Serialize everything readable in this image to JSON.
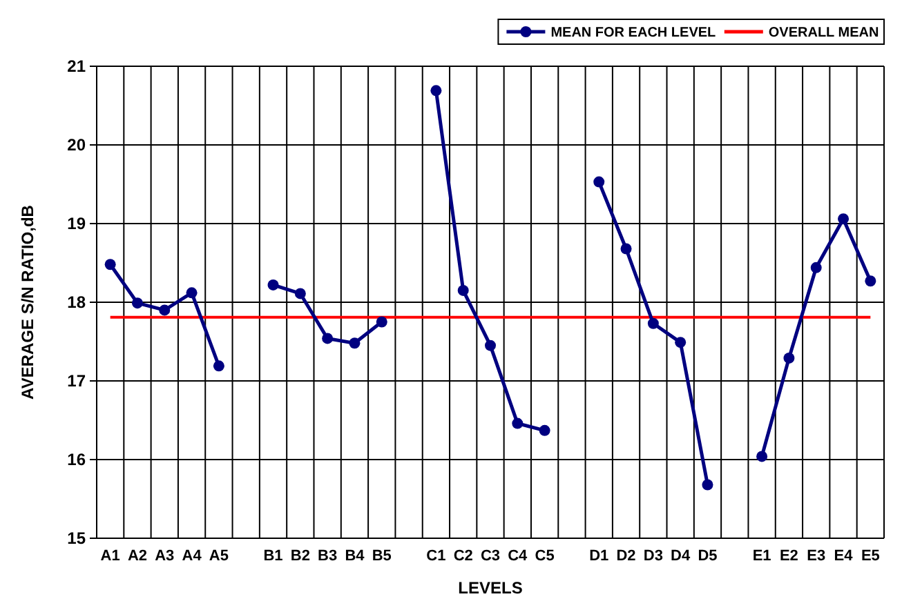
{
  "chart_data": {
    "type": "line",
    "xlabel": "LEVELS",
    "ylabel": "AVERAGE S/N RATIO,dB",
    "categories": [
      "A1",
      "A2",
      "A3",
      "A4",
      "A5",
      null,
      "B1",
      "B2",
      "B3",
      "B4",
      "B5",
      null,
      "C1",
      "C2",
      "C3",
      "C4",
      "C5",
      null,
      "D1",
      "D2",
      "D3",
      "D4",
      "D5",
      null,
      "E1",
      "E2",
      "E3",
      "E4",
      "E5"
    ],
    "series": [
      {
        "name": "MEAN FOR EACH LEVEL",
        "color": "#000080",
        "values": [
          18.48,
          17.99,
          17.9,
          18.12,
          17.19,
          null,
          18.22,
          18.11,
          17.54,
          17.48,
          17.75,
          null,
          20.69,
          18.15,
          17.45,
          16.46,
          16.37,
          null,
          19.53,
          18.68,
          17.73,
          17.49,
          15.68,
          null,
          16.04,
          17.29,
          18.44,
          19.06,
          18.27
        ]
      }
    ],
    "ylim": [
      15,
      21
    ],
    "yticks": [
      15,
      16,
      17,
      18,
      19,
      20,
      21
    ],
    "grid": true,
    "legend": "top right",
    "marker": "circle",
    "line_style": "solid",
    "ref_lines": [
      {
        "axis": "y",
        "value": 17.81,
        "label": "OVERALL MEAN",
        "color": "#ff0000"
      }
    ]
  }
}
